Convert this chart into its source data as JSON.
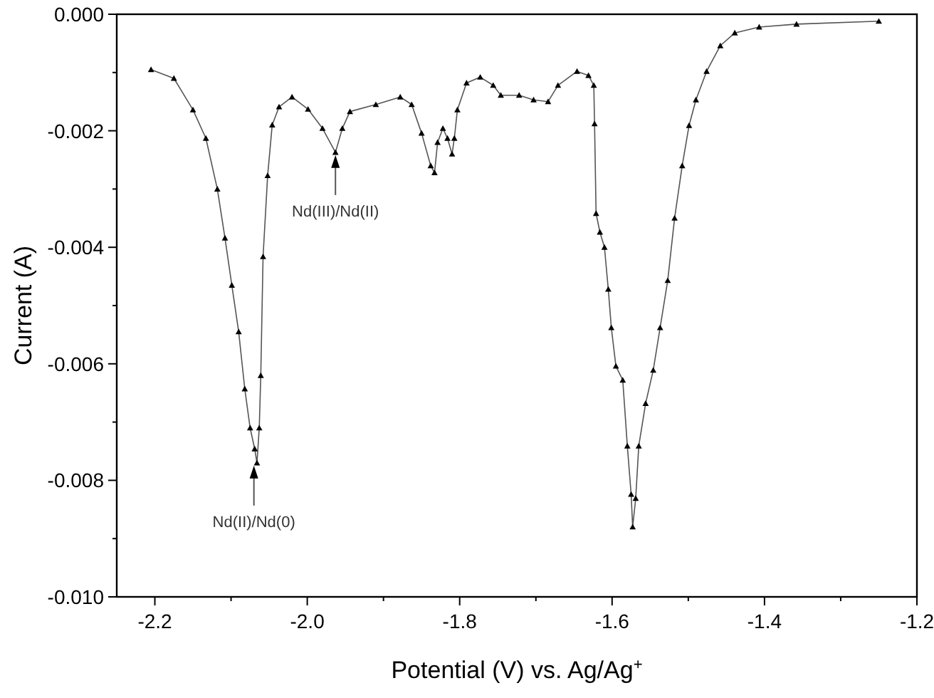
{
  "chart_data": {
    "type": "line",
    "xlabel": "Potential (V) vs. Ag/Ag$^{+}$",
    "ylabel": "Current (A)",
    "marker": "triangle",
    "grid": false,
    "xlim": [
      -2.25,
      -1.2
    ],
    "xticks": [
      -2.2,
      {
        "value": -2.1,
        "label": null
      },
      {
        "value": -2.0,
        "label": "-2.0"
      },
      -1.8,
      {
        "value": -1.9,
        "label": null
      },
      -1.6,
      {
        "value": -1.7,
        "label": null
      },
      -1.4,
      {
        "value": -1.5,
        "label": null
      },
      -1.2,
      {
        "value": -1.3,
        "label": null
      }
    ],
    "ylim": [
      -0.01,
      0
    ],
    "yticks": [
      {
        "value": 0,
        "label": "0.000"
      },
      {
        "value": -0.001,
        "label": null
      },
      {
        "value": -0.002,
        "label": "-0.002"
      },
      {
        "value": -0.003,
        "label": null
      },
      {
        "value": -0.004,
        "label": "-0.004"
      },
      {
        "value": -0.005,
        "label": null
      },
      {
        "value": -0.006,
        "label": "-0.006"
      },
      {
        "value": -0.007,
        "label": null
      },
      {
        "value": -0.008,
        "label": "-0.008"
      },
      {
        "value": -0.009,
        "label": null
      },
      {
        "value": -0.01,
        "label": "-0.010"
      }
    ],
    "series": [
      {
        "color": "#000000",
        "x": [
          -2.205,
          -2.175,
          -2.15,
          -2.133,
          -2.118,
          -2.108,
          -2.099,
          -2.09,
          -2.082,
          -2.075,
          -2.069,
          -2.066,
          -2.063,
          -2.061,
          -2.058,
          -2.052,
          -2.046,
          -2.037,
          -2.02,
          -1.999,
          -1.98,
          -1.963,
          -1.954,
          -1.944,
          -1.91,
          -1.878,
          -1.863,
          -1.85,
          -1.838,
          -1.833,
          -1.829,
          -1.822,
          -1.816,
          -1.81,
          -1.807,
          -1.803,
          -1.791,
          -1.773,
          -1.756,
          -1.746,
          -1.722,
          -1.703,
          -1.684,
          -1.671,
          -1.646,
          -1.631,
          -1.624,
          -1.623,
          -1.621,
          -1.616,
          -1.61,
          -1.605,
          -1.601,
          -1.595,
          -1.586,
          -1.58,
          -1.575,
          -1.573,
          -1.569,
          -1.565,
          -1.556,
          -1.546,
          -1.537,
          -1.527,
          -1.518,
          -1.508,
          -1.499,
          -1.49,
          -1.476,
          -1.458,
          -1.439,
          -1.407,
          -1.358,
          -1.25
        ],
        "values": [
          -0.00095,
          -0.0011,
          -0.00164,
          -0.00213,
          -0.003,
          -0.00384,
          -0.00465,
          -0.00545,
          -0.00643,
          -0.0071,
          -0.00746,
          -0.0077,
          -0.0071,
          -0.0062,
          -0.00416,
          -0.00277,
          -0.0019,
          -0.00159,
          -0.00142,
          -0.00163,
          -0.00196,
          -0.00237,
          -0.00196,
          -0.00167,
          -0.00155,
          -0.00142,
          -0.00155,
          -0.00204,
          -0.0026,
          -0.00272,
          -0.0022,
          -0.00196,
          -0.00213,
          -0.0024,
          -0.00213,
          -0.00164,
          -0.00118,
          -0.00108,
          -0.00122,
          -0.00139,
          -0.00139,
          -0.00147,
          -0.0015,
          -0.00122,
          -0.00098,
          -0.00105,
          -0.00122,
          -0.00188,
          -0.00342,
          -0.00374,
          -0.004,
          -0.00472,
          -0.00538,
          -0.00604,
          -0.00628,
          -0.00741,
          -0.00824,
          -0.0088,
          -0.00831,
          -0.00741,
          -0.00668,
          -0.00611,
          -0.00538,
          -0.00457,
          -0.0035,
          -0.0026,
          -0.00191,
          -0.00147,
          -0.00098,
          -0.00054,
          -0.00032,
          -0.00022,
          -0.00017,
          -0.00012
        ]
      }
    ],
    "annotations": [
      {
        "text": "Nd(II)/Nd(0)",
        "x": -2.07,
        "y": -0.0077
      },
      {
        "text": "Nd(III)/Nd(II)",
        "x": -1.963,
        "y": -0.00237
      }
    ]
  }
}
